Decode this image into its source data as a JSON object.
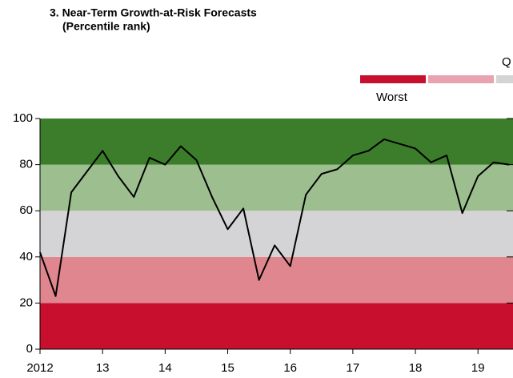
{
  "chart_data": {
    "type": "line",
    "title": "3. Near-Term Growth-at-Risk Forecasts",
    "subtitle": "(Percentile rank)",
    "legend_title": "Q",
    "legend": [
      {
        "name": "Worst",
        "color": "#c8102e"
      },
      {
        "name": null,
        "color": "#e8a3ae"
      },
      {
        "name": null,
        "color": "#d4d4d6"
      }
    ],
    "bands": [
      {
        "range": [
          0,
          20
        ],
        "color": "#c8102e"
      },
      {
        "range": [
          20,
          40
        ],
        "color": "#e0868f"
      },
      {
        "range": [
          40,
          60
        ],
        "color": "#d4d4d6"
      },
      {
        "range": [
          60,
          80
        ],
        "color": "#9dbf8f"
      },
      {
        "range": [
          80,
          100
        ],
        "color": "#3b7d2a"
      }
    ],
    "x": [
      2012,
      2012.25,
      2012.5,
      2012.75,
      2013,
      2013.25,
      2013.5,
      2013.75,
      2014,
      2014.25,
      2014.5,
      2014.75,
      2015,
      2015.25,
      2015.5,
      2015.75,
      2016,
      2016.25,
      2016.5,
      2016.75,
      2017,
      2017.25,
      2017.5,
      2017.75,
      2018,
      2018.25,
      2018.5,
      2018.75,
      2019,
      2019.25,
      2019.5
    ],
    "series": [
      {
        "name": null,
        "color": "#000000",
        "values": [
          42,
          23,
          68,
          77,
          86,
          75,
          66,
          83,
          80,
          88,
          82,
          66,
          52,
          61,
          30,
          45,
          36,
          67,
          76,
          78,
          84,
          86,
          91,
          89,
          87,
          81,
          84,
          59,
          75,
          81,
          80
        ]
      }
    ],
    "xlim": [
      2012,
      2019.56
    ],
    "xticks": [
      {
        "value": 2012,
        "label": "2012"
      },
      {
        "value": 2013,
        "label": "13"
      },
      {
        "value": 2014,
        "label": "14"
      },
      {
        "value": 2015,
        "label": "15"
      },
      {
        "value": 2016,
        "label": "16"
      },
      {
        "value": 2017,
        "label": "17"
      },
      {
        "value": 2018,
        "label": "18"
      },
      {
        "value": 2019,
        "label": "19"
      }
    ],
    "ylim": [
      0,
      100
    ],
    "yticks": [
      0,
      20,
      40,
      60,
      80,
      100
    ]
  }
}
